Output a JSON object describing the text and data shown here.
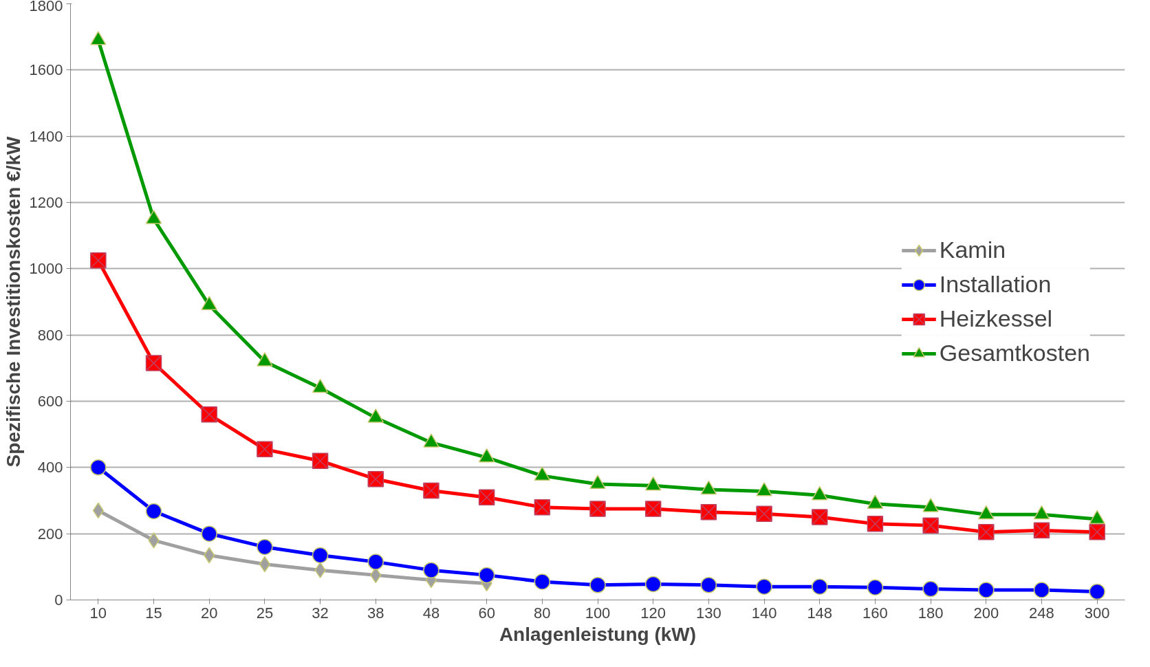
{
  "chart_data": {
    "type": "line",
    "xlabel": "Anlagenleistung (kW)",
    "ylabel": "Spezifische Investitionskosten €/kW",
    "categories": [
      "10",
      "15",
      "20",
      "25",
      "32",
      "38",
      "48",
      "60",
      "80",
      "100",
      "120",
      "130",
      "140",
      "148",
      "160",
      "180",
      "200",
      "248",
      "300"
    ],
    "ylim": [
      0,
      1800
    ],
    "yticks": [
      0,
      200,
      400,
      600,
      800,
      1000,
      1200,
      1400,
      1600,
      1800
    ],
    "grid": "y",
    "legend": "right",
    "line_style": "solid",
    "series": [
      {
        "name": "Kamin",
        "color": "#a0a0a0",
        "marker": "diamond",
        "values": [
          270,
          180,
          135,
          108,
          90,
          75,
          60,
          50,
          null,
          null,
          null,
          null,
          null,
          null,
          null,
          null,
          null,
          null,
          null
        ]
      },
      {
        "name": "Installation",
        "color": "#0000ff",
        "marker": "circle",
        "values": [
          400,
          268,
          200,
          160,
          135,
          115,
          90,
          75,
          55,
          45,
          48,
          45,
          40,
          40,
          38,
          33,
          30,
          30,
          25
        ]
      },
      {
        "name": "Heizkessel",
        "color": "#ff0000",
        "marker": "square",
        "values": [
          1025,
          715,
          560,
          455,
          420,
          365,
          330,
          310,
          280,
          275,
          275,
          265,
          260,
          250,
          230,
          225,
          205,
          210,
          205
        ]
      },
      {
        "name": "Gesamtkosten",
        "color": "#009900",
        "marker": "triangle",
        "values": [
          1690,
          1150,
          890,
          720,
          640,
          550,
          475,
          430,
          375,
          350,
          345,
          333,
          328,
          316,
          290,
          280,
          258,
          258,
          244
        ]
      }
    ]
  }
}
